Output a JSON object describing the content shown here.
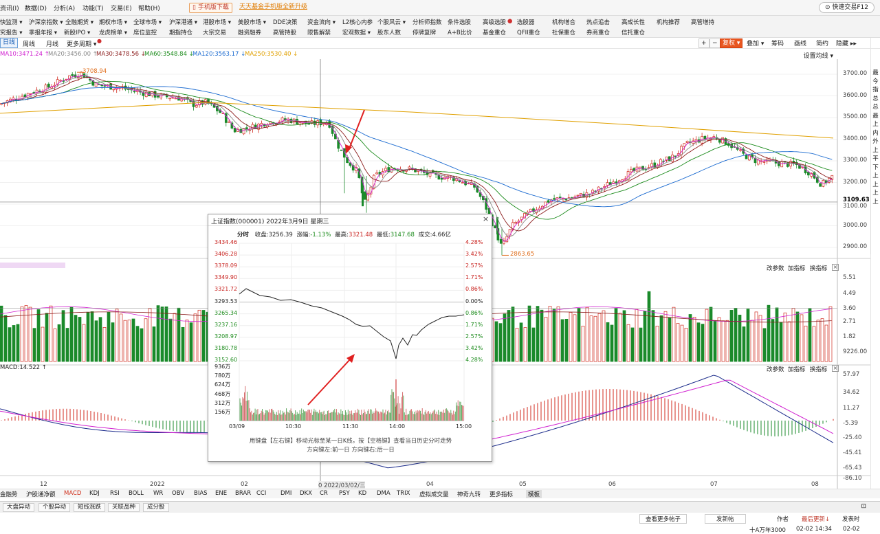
{
  "menubar": {
    "items": [
      "资讯(I)",
      "数据(D)",
      "分析(A)",
      "功能(T)",
      "交易(E)",
      "帮助(H)"
    ],
    "promo1": "手机版下载",
    "promo2": "天天基金手机版全新升级",
    "quick": "快速交易F12"
  },
  "nav_row1": [
    "快监测 ▾",
    "沪深京指数 ▾",
    "全融期货 ▾",
    "期权市场 ▾",
    "全球市场 ▾",
    "沪深港通 ▾",
    "港股市场 ▾",
    "美股市场 ▾",
    "DDE决策",
    "资金流向 ▾",
    "L2核心内参",
    "个股风云 ▾",
    "分析师指数",
    "条件选股",
    "高级选股",
    "选股器",
    "机构增合",
    "热点追击",
    "高成长性",
    "机构推荐",
    "高管增持"
  ],
  "nav_row2": [
    "究报告 ▾",
    "季报年报 ▾",
    "新股IPO ▾",
    "龙虎榜单 ▾",
    "席位监控",
    "期指持仓",
    "大宗交易",
    "融资融券",
    "高管持股",
    "限售解禁",
    "宏观数据 ▾",
    "股东人数",
    "停牌复牌",
    "A+B比价",
    "基金重仓",
    "QFII重仓",
    "社保重仓",
    "券商重仓",
    "信托重仓"
  ],
  "periods": {
    "day": "日线",
    "week": "周线",
    "month": "月线",
    "more": "更多周期 ▾"
  },
  "toolbar": {
    "plus": "+",
    "minus": "−",
    "fq": "复权 ▾",
    "overlay": "叠加 ▾",
    "chip": "筹码",
    "draw": "画线",
    "simple": "简约",
    "hide": "隐藏 ▸▸"
  },
  "ma_legend": [
    {
      "t": "MA10:3471.24 ↑",
      "c": "#d020d0"
    },
    {
      "t": "MA20:3456.00 ↑",
      "c": "#888888"
    },
    {
      "t": "MA30:3478.56 ↓",
      "c": "#8a1a1a"
    },
    {
      "t": "MA60:3548.84 ↓",
      "c": "#1a8a1a"
    },
    {
      "t": "MA120:3563.17 ↓",
      "c": "#1a6ad0"
    },
    {
      "t": "MA250:3530.40 ↓",
      "c": "#e0a000"
    }
  ],
  "set_ma": "设置均线 ▾",
  "price_axis": [
    "3700.00",
    "3600.00",
    "3500.00",
    "3400.00",
    "3300.00",
    "3200.00",
    "3109.63",
    "3100.00",
    "3000.00",
    "2900.00"
  ],
  "price_labels": {
    "high": "3708.94",
    "low": "2863.65"
  },
  "vol_axis": [
    "5.51",
    "4.49",
    "3.60",
    "2.71",
    "1.82",
    "9226.00"
  ],
  "macd_axis": [
    "57.97",
    "34.62",
    "11.27",
    "-5.39",
    "-25.40",
    "-45.41",
    "-65.43",
    "-86.10"
  ],
  "panel_btns": {
    "params": "改参数",
    "add": "加指标",
    "switch": "换指标",
    "x": "×"
  },
  "macd_legend": "MACD:14.522 ↑",
  "x_axis": [
    "12",
    "2022",
    "02",
    "0 2022/03/02/三",
    "04",
    "05",
    "06",
    "07",
    "08"
  ],
  "bottom_tabs": [
    "金融势",
    "沪股通净额",
    "MACD",
    "KDJ",
    "RSI",
    "BOLL",
    "WR",
    "OBV",
    "BIAS",
    "ENE",
    "BRAR",
    "CCI",
    "DMI",
    "DKX",
    "CR",
    "PSY",
    "KD",
    "DMA",
    "TRIX",
    "虚拟成交量",
    "神奇九转",
    "更多指标",
    "模板"
  ],
  "status_tabs": [
    "大盘异动",
    "个股异动",
    "短线涨跌",
    "关联品种",
    "成分股"
  ],
  "footer": {
    "more": "查看更多帖子",
    "post": "发新帖",
    "author": "作者",
    "latest": "最后更新↓",
    "reply": "发表时",
    "row2a": "十A万年3000",
    "row2b": "02-02 14:34",
    "row2c": "02-02"
  },
  "right_dock": [
    "最",
    "今",
    "指",
    "总",
    "总",
    "最",
    "上",
    "内",
    "外",
    "上",
    "平",
    "下",
    "上",
    "上",
    "上",
    "上"
  ],
  "popup": {
    "title": "上证指数(000001) 2022年3月9日 星期三",
    "info_label": "分时",
    "close_label": "收盘:",
    "close": "3256.39",
    "chg_label": "涨幅:",
    "chg": "-1.13%",
    "high_label": "最高:",
    "high": "3321.48",
    "low_label": "最低:",
    "low": "3147.68",
    "amt_label": "成交:",
    "amt": "4.66亿",
    "left_axis": [
      "3434.46",
      "3406.28",
      "3378.09",
      "3349.90",
      "3321.72",
      "3293.53",
      "3265.34",
      "3237.16",
      "3208.97",
      "3180.78",
      "3152.60"
    ],
    "right_axis": [
      "4.28%",
      "3.42%",
      "2.57%",
      "1.71%",
      "0.86%",
      "0.00%",
      "0.86%",
      "1.71%",
      "2.57%",
      "3.42%",
      "4.28%"
    ],
    "vol_axis": [
      "936万",
      "780万",
      "624万",
      "468万",
      "312万",
      "156万"
    ],
    "time_axis": [
      "03/09",
      "10:30",
      "11:30",
      "14:00",
      "15:00"
    ],
    "hint1": "用键盘【左右键】移动光标至某一日K线，按【空格键】查看当日历史分时走势",
    "hint2": "方向键左:前一日   方向键右:后一日"
  },
  "colors": {
    "up": "#d0281c",
    "down": "#1a8a2a",
    "ma10": "#d020d0",
    "ma20": "#888888",
    "ma30": "#8a1a1a",
    "ma60": "#1a8a1a",
    "ma120": "#1a6ad0",
    "ma250": "#e0a000",
    "arrow": "#e02020"
  }
}
